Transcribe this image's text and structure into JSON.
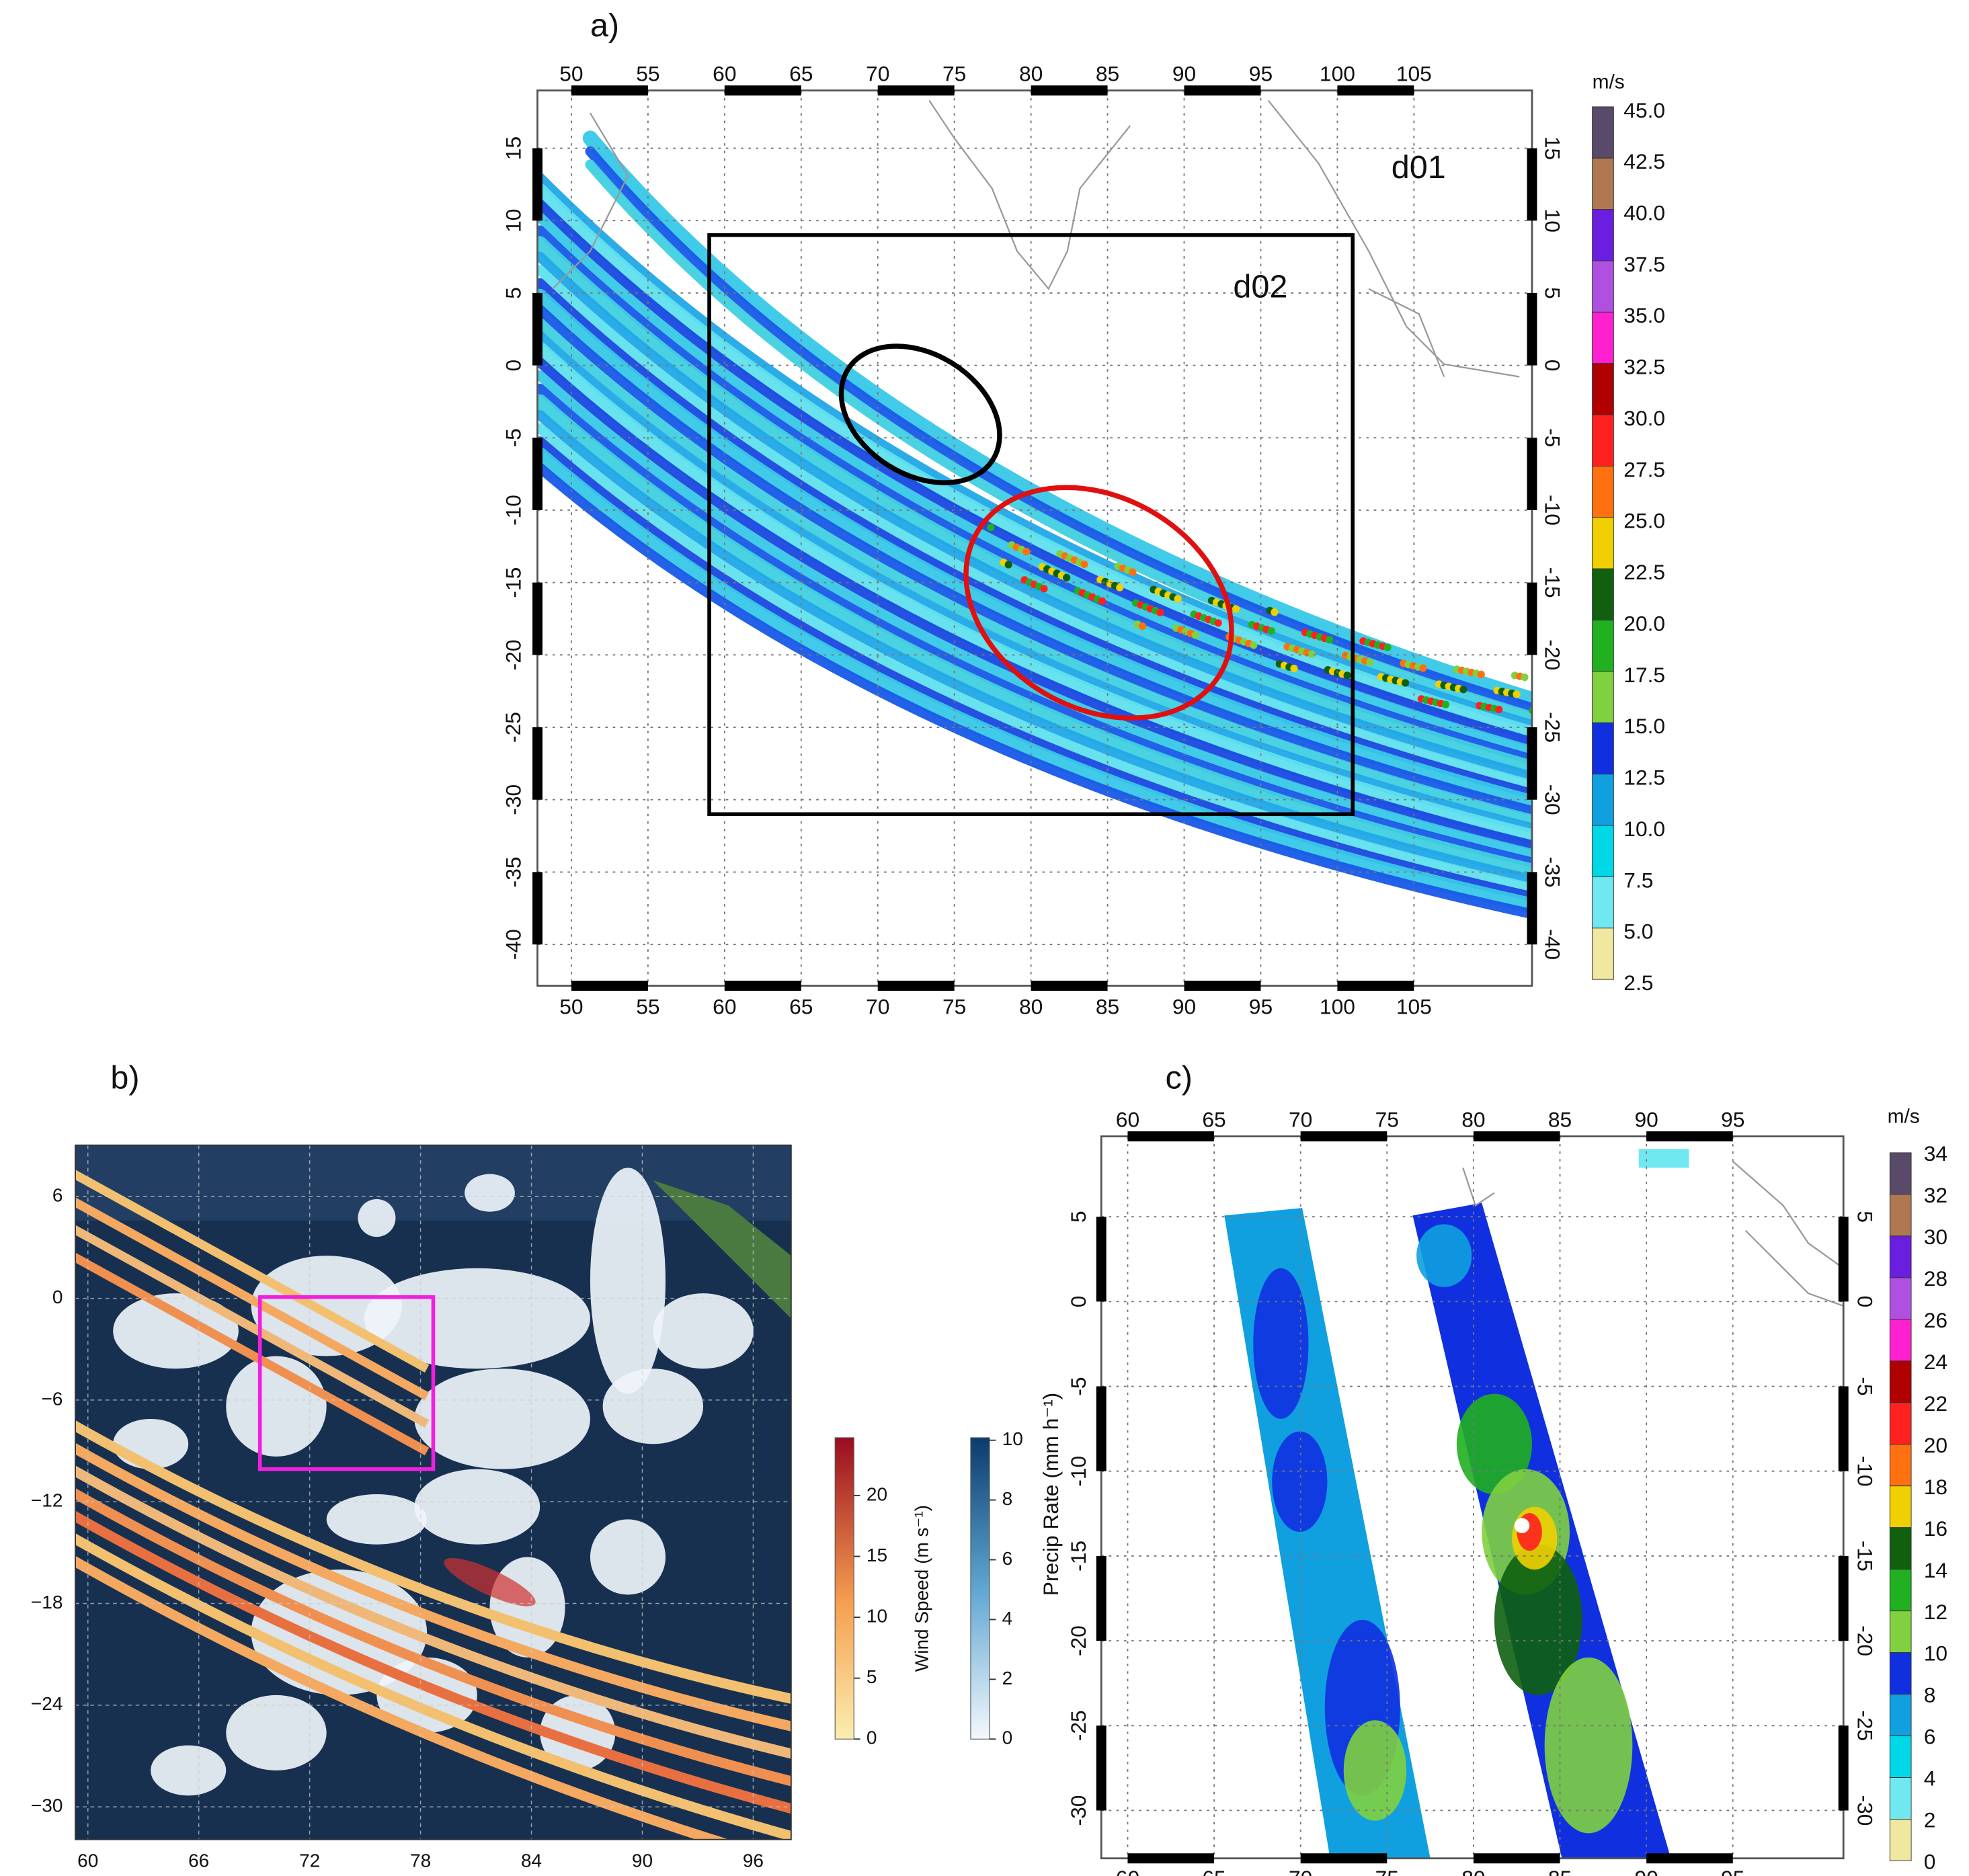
{
  "panel_a": {
    "label": "a)",
    "x_ticks": [
      50,
      55,
      60,
      65,
      70,
      75,
      80,
      85,
      90,
      95,
      100,
      105
    ],
    "y_ticks": [
      15,
      10,
      5,
      0,
      -5,
      -10,
      -15,
      -20,
      -25,
      -30,
      -35,
      -40
    ],
    "domain_labels": [
      "d01",
      "d02"
    ],
    "colorbar": {
      "unit": "m/s",
      "labels": [
        "45.0",
        "42.5",
        "40.0",
        "37.5",
        "35.0",
        "32.5",
        "30.0",
        "27.5",
        "25.0",
        "22.5",
        "20.0",
        "17.5",
        "15.0",
        "12.5",
        "10.0",
        "7.5",
        "5.0",
        "2.5"
      ]
    }
  },
  "panel_b": {
    "label": "b)",
    "x_ticks": [
      "60",
      "66",
      "72",
      "78",
      "84",
      "90",
      "96"
    ],
    "y_ticks": [
      "6",
      "0",
      "−6",
      "−12",
      "−18",
      "−24",
      "−30"
    ],
    "colorbar_wind": {
      "label": "Wind Speed (m s⁻¹)",
      "ticks": [
        0,
        5,
        10,
        15,
        20
      ]
    },
    "colorbar_precip": {
      "ticks": [
        0,
        2,
        4,
        6,
        8,
        10
      ]
    }
  },
  "panel_c": {
    "label": "c)",
    "x_ticks": [
      60,
      65,
      70,
      75,
      80,
      85,
      90,
      95
    ],
    "y_ticks": [
      5,
      0,
      -5,
      -10,
      -15,
      -20,
      -25,
      -30
    ],
    "y_axis_label": "Precip Rate (mm h⁻¹)",
    "colorbar": {
      "unit": "m/s",
      "labels": [
        "34",
        "32",
        "30",
        "28",
        "26",
        "24",
        "22",
        "20",
        "18",
        "16",
        "14",
        "12",
        "10",
        "8",
        "6",
        "4",
        "2",
        "0"
      ]
    }
  }
}
